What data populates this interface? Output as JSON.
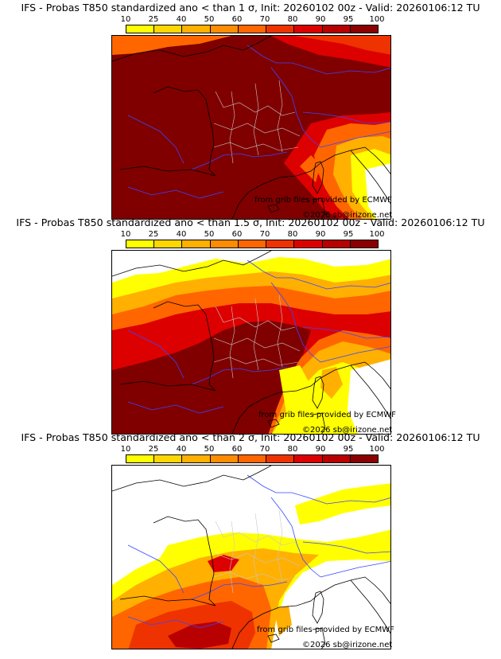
{
  "legend": {
    "ticks": [
      "10",
      "25",
      "40",
      "50",
      "60",
      "70",
      "80",
      "90",
      "95",
      "100"
    ],
    "colors": [
      "#ffff00",
      "#ffd700",
      "#ffb000",
      "#ff8c00",
      "#ff6600",
      "#ee3300",
      "#dd0000",
      "#b80000",
      "#8b0000",
      "#5a0000"
    ]
  },
  "panels": [
    {
      "title": "IFS - Probas T850  standardized ano < than 1 σ, Init: 20260102 00z - Valid: 20260106:12 TU",
      "credit_source": "from grib files provided by ECMWF",
      "credit_site": "©2026 sb@irizone.net"
    },
    {
      "title": "IFS - Probas T850  standardized ano < than 1.5 σ, Init: 20260102 00z - Valid: 20260106:12 TU",
      "credit_source": "from grib files provided by ECMWF",
      "credit_site": "©2026 sb@irizone.net"
    },
    {
      "title": "IFS - Probas T850  standardized ano < than 2 σ, Init: 20260102 00z - Valid: 20260106:12 TU",
      "credit_source": "from grib files provided by ECMWF",
      "credit_site": "©2026 sb@irizone.net"
    }
  ]
}
